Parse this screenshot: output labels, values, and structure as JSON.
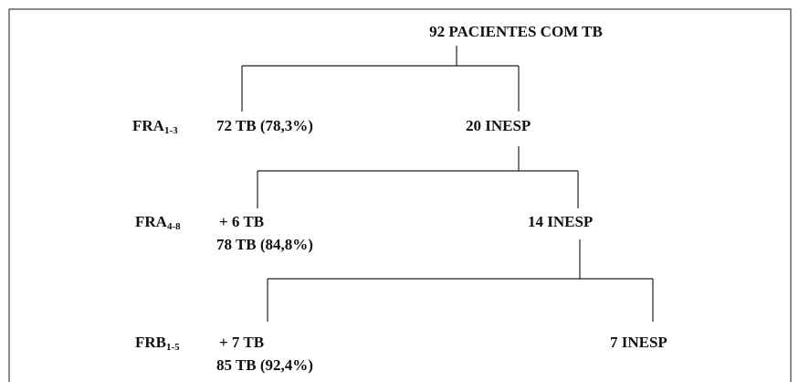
{
  "title": "92 PACIENTES COM TB",
  "levels": [
    {
      "name": "FRA",
      "sub": "1-3",
      "result": "72 TB (78,3%)",
      "remaining": "20 INESP"
    },
    {
      "name": "FRA",
      "sub": "4-8",
      "added": "+ 6 TB",
      "result": "78 TB (84,8%)",
      "remaining": "14 INESP"
    },
    {
      "name": "FRB",
      "sub": "1-5",
      "added": "+ 7 TB",
      "result": "85 TB (92,4%)",
      "remaining": "7 INESP"
    }
  ]
}
